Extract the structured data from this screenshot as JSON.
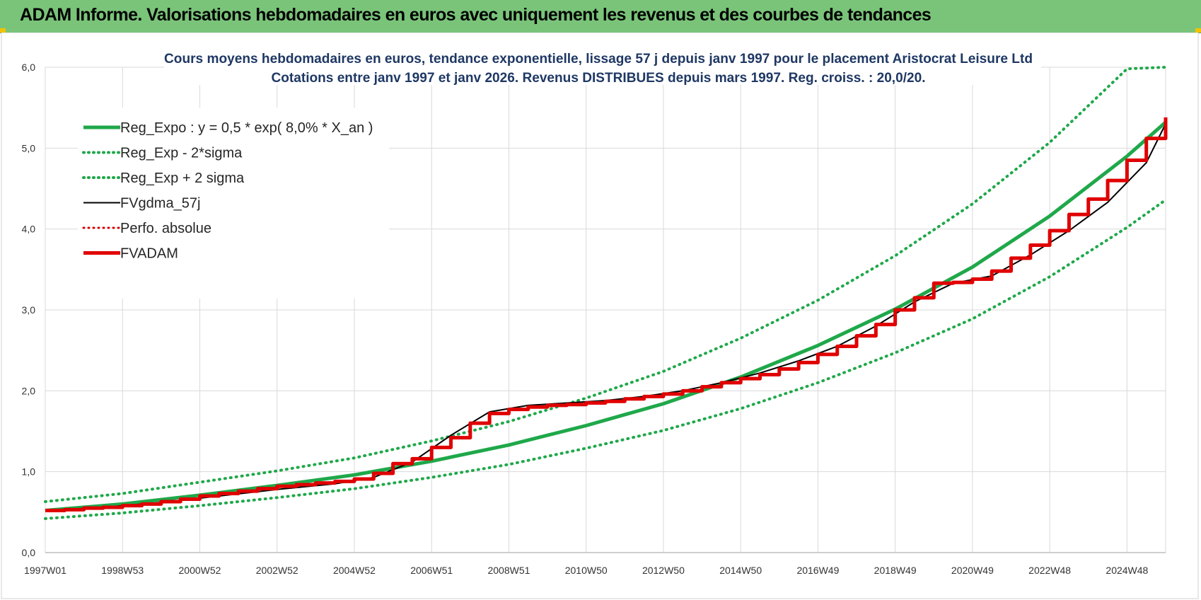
{
  "header": {
    "title": "ADAM Informe. Valorisations hebdomadaires en euros avec uniquement les revenus et des courbes de tendances"
  },
  "chart_data": {
    "type": "line",
    "title": "Cours moyens  hebdomadaires en euros, tendance exponentielle, lissage 57 j depuis janv 1997 pour le placement Aristocrat Leisure Ltd",
    "subtitle": "Cotations entre janv 1997 et janv 2026. Revenus DISTRIBUES depuis mars 1997. Reg. croiss. : 20,0/20.",
    "xlabel": "",
    "ylabel": "",
    "x_range": [
      1997.0,
      2026.0
    ],
    "ylim": [
      0,
      6
    ],
    "y_ticks": [
      "0,0",
      "1,0",
      "2,0",
      "3,0",
      "4,0",
      "5,0",
      "6,0"
    ],
    "x_ticks": [
      {
        "label": "1997W01",
        "x": 1997.0
      },
      {
        "label": "1998W53",
        "x": 1999.0
      },
      {
        "label": "2000W52",
        "x": 2001.0
      },
      {
        "label": "2002W52",
        "x": 2003.0
      },
      {
        "label": "2004W52",
        "x": 2005.0
      },
      {
        "label": "2006W51",
        "x": 2007.0
      },
      {
        "label": "2008W51",
        "x": 2009.0
      },
      {
        "label": "2010W50",
        "x": 2011.0
      },
      {
        "label": "2012W50",
        "x": 2013.0
      },
      {
        "label": "2014W50",
        "x": 2015.0
      },
      {
        "label": "2016W49",
        "x": 2017.0
      },
      {
        "label": "2018W49",
        "x": 2019.0
      },
      {
        "label": "2020W49",
        "x": 2021.0
      },
      {
        "label": "2022W48",
        "x": 2023.0
      },
      {
        "label": "2024W48",
        "x": 2025.0
      }
    ],
    "grid": true,
    "legend_position": "top-left",
    "series": [
      {
        "name": "Reg_Expo : y = 0,5 * exp( 8,0% *  X_an )",
        "color": "#1fa84a",
        "style": "solid",
        "width": 5,
        "x": [
          1997,
          1999,
          2001,
          2003,
          2005,
          2007,
          2009,
          2011,
          2013,
          2015,
          2017,
          2019,
          2021,
          2023,
          2025,
          2026
        ],
        "y": [
          0.52,
          0.6,
          0.71,
          0.83,
          0.96,
          1.13,
          1.33,
          1.57,
          1.84,
          2.17,
          2.56,
          3.01,
          3.53,
          4.16,
          4.9,
          5.32
        ]
      },
      {
        "name": "Reg_Exp - 2*sigma",
        "color": "#1fa84a",
        "style": "dotted",
        "width": 4,
        "x": [
          1997,
          1999,
          2001,
          2003,
          2005,
          2007,
          2009,
          2011,
          2013,
          2015,
          2017,
          2019,
          2021,
          2023,
          2025,
          2026
        ],
        "y": [
          0.42,
          0.49,
          0.58,
          0.68,
          0.79,
          0.93,
          1.09,
          1.29,
          1.51,
          1.78,
          2.1,
          2.47,
          2.89,
          3.41,
          4.02,
          4.36
        ]
      },
      {
        "name": "Reg_Exp + 2 sigma",
        "color": "#1fa84a",
        "style": "dotted",
        "width": 4,
        "x": [
          1997,
          1999,
          2001,
          2003,
          2005,
          2007,
          2009,
          2011,
          2013,
          2015,
          2017,
          2019,
          2021,
          2023,
          2025,
          2026
        ],
        "y": [
          0.63,
          0.73,
          0.87,
          1.01,
          1.17,
          1.38,
          1.62,
          1.91,
          2.24,
          2.65,
          3.12,
          3.67,
          4.31,
          5.07,
          5.98,
          6.0
        ]
      },
      {
        "name": "FVgdma_57j",
        "color": "#000000",
        "style": "solid",
        "width": 2,
        "x": [
          1997,
          1998.5,
          2000,
          2001.5,
          2003,
          2004.5,
          2005.5,
          2006.5,
          2007.5,
          2008.5,
          2009.5,
          2010.5,
          2011.5,
          2012.5,
          2013.5,
          2014.5,
          2015.5,
          2016.5,
          2017.5,
          2018.5,
          2019.5,
          2020.5,
          2021.5,
          2022.5,
          2023.5,
          2024.5,
          2025.5,
          2026
        ],
        "y": [
          0.52,
          0.56,
          0.62,
          0.7,
          0.78,
          0.85,
          0.93,
          1.12,
          1.45,
          1.74,
          1.82,
          1.85,
          1.88,
          1.93,
          2.0,
          2.1,
          2.22,
          2.37,
          2.55,
          2.8,
          3.1,
          3.33,
          3.42,
          3.68,
          3.98,
          4.33,
          4.82,
          5.3
        ]
      },
      {
        "name": "Perfo. absolue",
        "color": "#d40000",
        "style": "dotted",
        "width": 3,
        "x": [],
        "y": []
      },
      {
        "name": "FVADAM",
        "color": "#e00000",
        "style": "step",
        "width": 5,
        "x": [
          1997,
          1997.5,
          1998,
          1998.5,
          1999,
          1999.5,
          2000,
          2000.5,
          2001,
          2001.5,
          2002,
          2002.5,
          2003,
          2003.5,
          2004,
          2004.5,
          2005,
          2005.5,
          2006,
          2006.5,
          2007,
          2007.5,
          2008,
          2008.5,
          2009,
          2009.5,
          2010,
          2010.5,
          2011,
          2011.5,
          2012,
          2012.5,
          2013,
          2013.5,
          2014,
          2014.5,
          2015,
          2015.5,
          2016,
          2016.5,
          2017,
          2017.5,
          2018,
          2018.5,
          2019,
          2019.5,
          2020,
          2020.5,
          2021,
          2021.5,
          2022,
          2022.5,
          2023,
          2023.5,
          2024,
          2024.5,
          2025,
          2025.5,
          2026
        ],
        "y": [
          0.52,
          0.53,
          0.55,
          0.56,
          0.58,
          0.6,
          0.63,
          0.66,
          0.7,
          0.73,
          0.76,
          0.79,
          0.82,
          0.84,
          0.86,
          0.88,
          0.91,
          0.98,
          1.1,
          1.16,
          1.3,
          1.42,
          1.6,
          1.72,
          1.77,
          1.8,
          1.82,
          1.83,
          1.85,
          1.87,
          1.9,
          1.93,
          1.96,
          2.0,
          2.05,
          2.1,
          2.15,
          2.2,
          2.27,
          2.35,
          2.45,
          2.55,
          2.68,
          2.82,
          3.0,
          3.15,
          3.33,
          3.34,
          3.38,
          3.48,
          3.64,
          3.8,
          3.98,
          4.18,
          4.37,
          4.6,
          4.85,
          5.12,
          5.38
        ]
      }
    ]
  }
}
